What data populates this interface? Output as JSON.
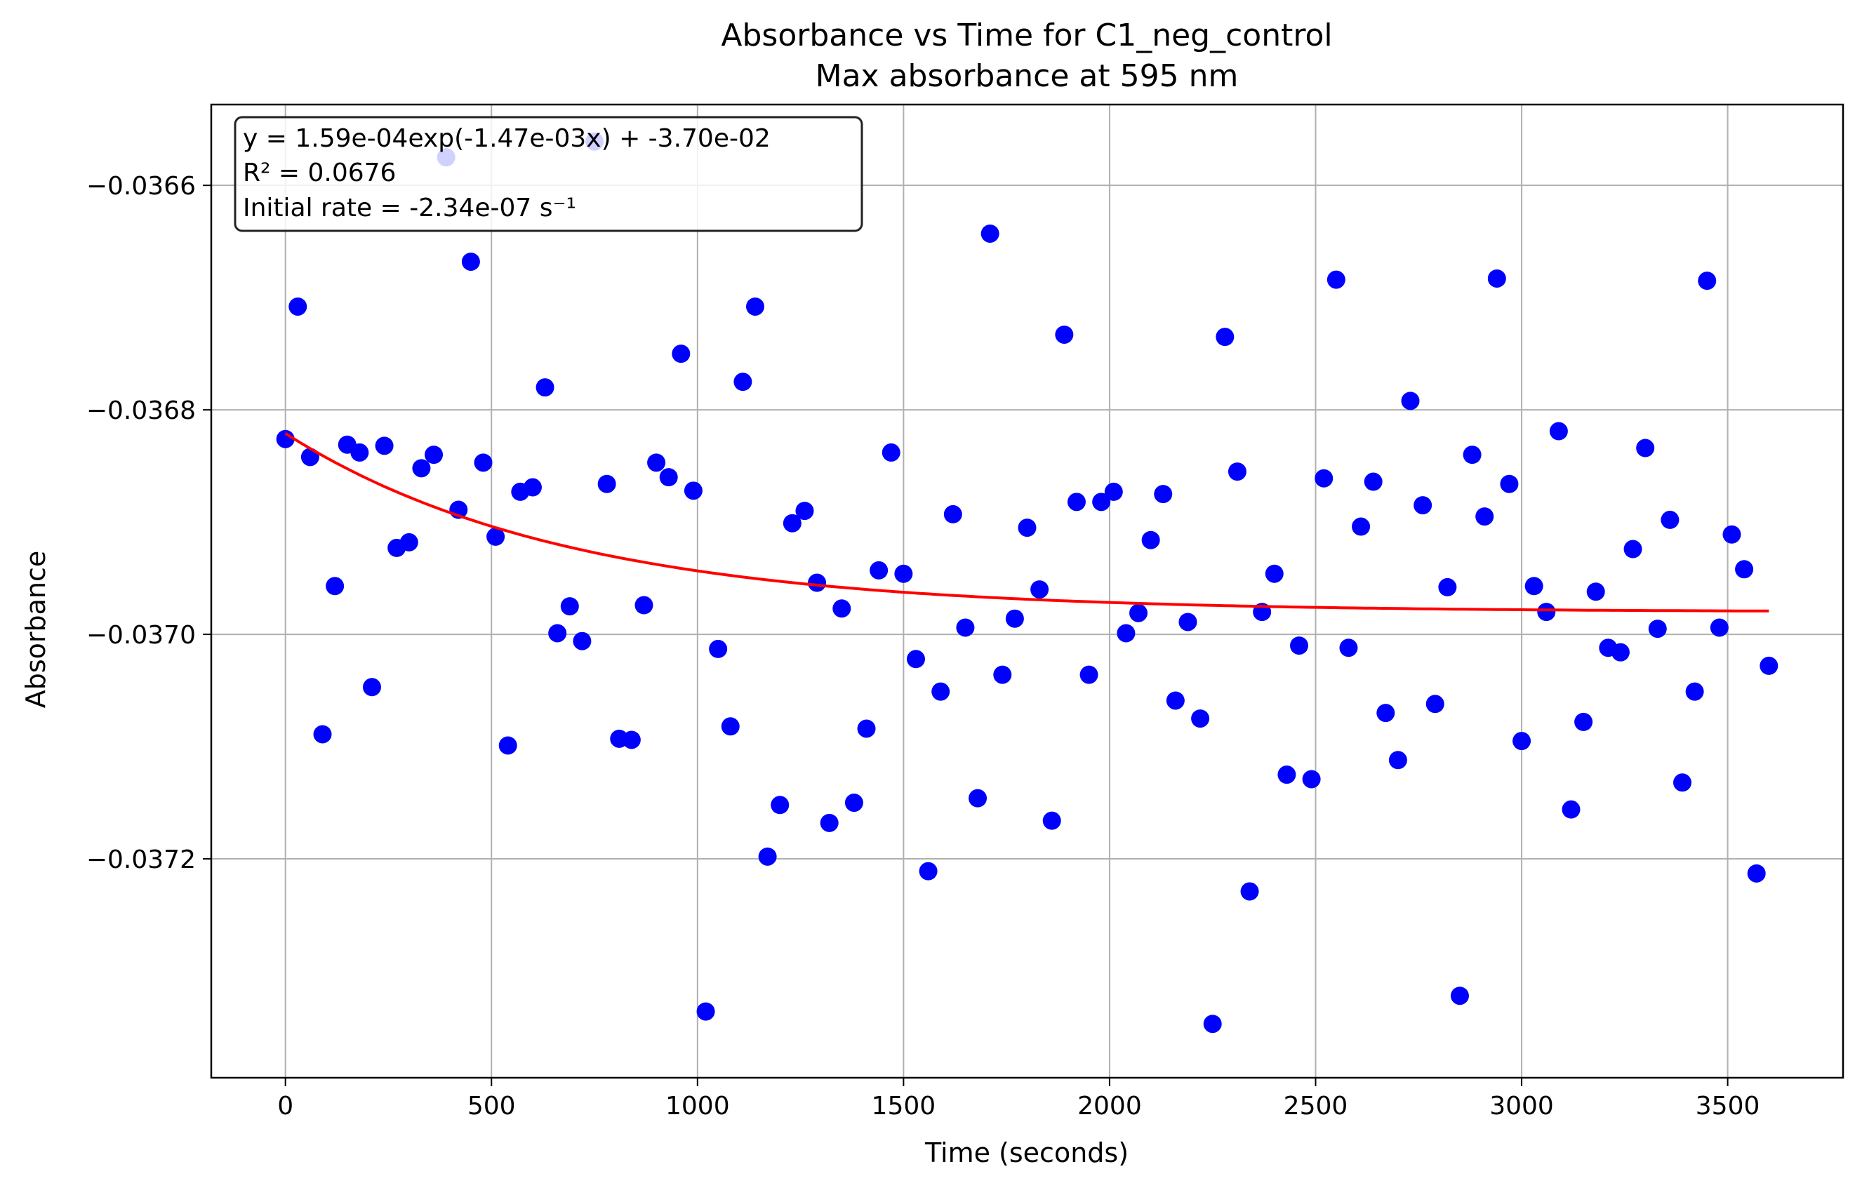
{
  "chart_data": {
    "type": "scatter",
    "title": "Absorbance vs Time for C1_neg_control",
    "subtitle": "Max absorbance at 595 nm",
    "xlabel": "Time (seconds)",
    "ylabel": "Absorbance",
    "xlim": [
      -180,
      3780
    ],
    "ylim": [
      -0.037395,
      -0.036528
    ],
    "xticks": [
      0,
      500,
      1000,
      1500,
      2000,
      2500,
      3000,
      3500
    ],
    "xtick_labels": [
      "0",
      "500",
      "1000",
      "1500",
      "2000",
      "2500",
      "3000",
      "3500"
    ],
    "yticks": [
      -0.0366,
      -0.0368,
      -0.037,
      -0.0372
    ],
    "ytick_labels": [
      "−0.0366",
      "−0.0368",
      "−0.0370",
      "−0.0372"
    ],
    "grid": true,
    "annotation": {
      "lines": [
        "y = 1.59e-04exp(-1.47e-03x) + -3.70e-02",
        "R² = 0.0676",
        "Initial rate = -2.34e-07 s⁻¹"
      ],
      "placement": "top-left"
    },
    "series": [
      {
        "kind": "points",
        "color": "#0000ff",
        "x": [
          0,
          30,
          60,
          90,
          120,
          150,
          180,
          210,
          240,
          270,
          300,
          330,
          360,
          390,
          420,
          450,
          480,
          510,
          540,
          570,
          600,
          630,
          660,
          690,
          720,
          750,
          780,
          810,
          840,
          870,
          900,
          930,
          960,
          990,
          1020,
          1050,
          1080,
          1110,
          1140,
          1170,
          1200,
          1230,
          1260,
          1290,
          1320,
          1350,
          1380,
          1410,
          1440,
          1470,
          1500,
          1530,
          1560,
          1590,
          1620,
          1650,
          1680,
          1710,
          1740,
          1770,
          1800,
          1830,
          1860,
          1890,
          1920,
          1950,
          1980,
          2010,
          2040,
          2070,
          2100,
          2130,
          2160,
          2190,
          2220,
          2250,
          2280,
          2310,
          2340,
          2370,
          2400,
          2430,
          2460,
          2490,
          2520,
          2550,
          2580,
          2610,
          2640,
          2670,
          2700,
          2730,
          2760,
          2790,
          2820,
          2850,
          2880,
          2910,
          2940,
          2970,
          3000,
          3030,
          3060,
          3090,
          3120,
          3150,
          3180,
          3210,
          3240,
          3270,
          3300,
          3330,
          3360,
          3390,
          3420,
          3450,
          3480,
          3510,
          3540,
          3570,
          3600
        ],
        "y": [
          -0.036826,
          -0.036708,
          -0.036842,
          -0.037089,
          -0.036957,
          -0.036831,
          -0.036838,
          -0.037047,
          -0.036832,
          -0.036923,
          -0.036918,
          -0.036852,
          -0.03684,
          -0.036575,
          -0.036889,
          -0.036668,
          -0.036847,
          -0.036913,
          -0.037099,
          -0.036873,
          -0.036869,
          -0.03678,
          -0.036999,
          -0.036975,
          -0.037006,
          -0.036561,
          -0.036866,
          -0.037093,
          -0.037094,
          -0.036974,
          -0.036847,
          -0.03686,
          -0.03675,
          -0.036872,
          -0.037336,
          -0.037013,
          -0.037082,
          -0.036775,
          -0.036708,
          -0.037198,
          -0.037152,
          -0.036901,
          -0.03689,
          -0.036954,
          -0.037168,
          -0.036977,
          -0.03715,
          -0.037084,
          -0.036943,
          -0.036838,
          -0.036946,
          -0.037022,
          -0.037211,
          -0.037051,
          -0.036893,
          -0.036994,
          -0.037146,
          -0.036643,
          -0.037036,
          -0.036986,
          -0.036905,
          -0.03696,
          -0.037166,
          -0.036733,
          -0.036882,
          -0.037036,
          -0.036882,
          -0.036873,
          -0.036999,
          -0.036981,
          -0.036916,
          -0.036875,
          -0.037059,
          -0.036989,
          -0.037075,
          -0.037347,
          -0.036735,
          -0.036855,
          -0.037229,
          -0.03698,
          -0.036946,
          -0.037125,
          -0.03701,
          -0.037129,
          -0.036861,
          -0.036684,
          -0.037012,
          -0.036904,
          -0.036864,
          -0.03707,
          -0.037112,
          -0.036792,
          -0.036885,
          -0.037062,
          -0.036958,
          -0.037322,
          -0.03684,
          -0.036895,
          -0.036683,
          -0.036866,
          -0.037095,
          -0.036957,
          -0.03698,
          -0.036819,
          -0.037156,
          -0.037078,
          -0.036962,
          -0.037012,
          -0.037016,
          -0.036924,
          -0.036834,
          -0.036995,
          -0.036898,
          -0.037132,
          -0.037051,
          -0.036685,
          -0.036994,
          -0.036911,
          -0.036942,
          -0.037213,
          -0.037028
        ]
      },
      {
        "kind": "fit_curve",
        "color": "#ff0000",
        "equation": {
          "a": 0.000159,
          "b": -0.00147,
          "c": -0.03698
        },
        "x_range": [
          0,
          3600
        ]
      }
    ]
  }
}
